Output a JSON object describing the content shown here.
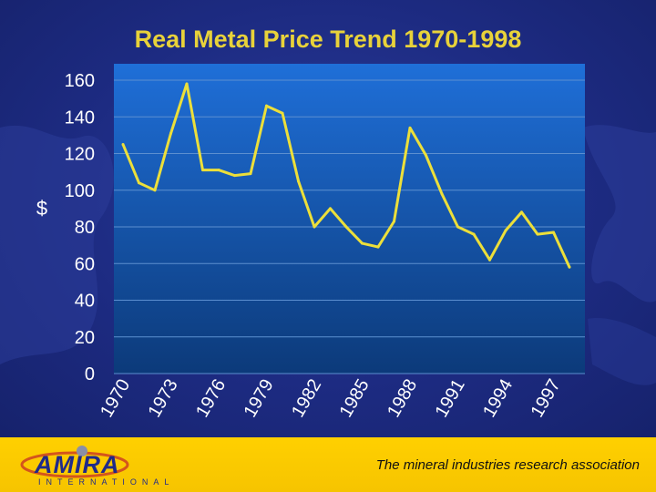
{
  "title": "Real Metal Price Trend 1970-1998",
  "footer": {
    "logo_text": "AMIRA",
    "logo_subtext": "INTERNATIONAL",
    "tagline": "The mineral industries research association"
  },
  "colors": {
    "background": "#1d2b82",
    "title": "#e8d23a",
    "plot_top": "#1f6fd8",
    "plot_bottom": "#0c3a7a",
    "line": "#ecdf3a",
    "footer": "#ffd000"
  },
  "chart_data": {
    "type": "line",
    "title": "Real Metal Price Trend 1970-1998",
    "xlabel": "",
    "ylabel": "$",
    "ylim": [
      0,
      160
    ],
    "yticks": [
      0,
      20,
      40,
      60,
      80,
      100,
      120,
      140,
      160
    ],
    "xticks": [
      "1970",
      "1973",
      "1976",
      "1979",
      "1982",
      "1985",
      "1988",
      "1991",
      "1994",
      "1997"
    ],
    "grid": true,
    "legend": "none",
    "x": [
      1970,
      1971,
      1972,
      1973,
      1974,
      1975,
      1976,
      1977,
      1978,
      1979,
      1980,
      1981,
      1982,
      1983,
      1984,
      1985,
      1986,
      1987,
      1988,
      1989,
      1990,
      1991,
      1992,
      1993,
      1994,
      1995,
      1996,
      1997,
      1998
    ],
    "series": [
      {
        "values": [
          125,
          104,
          100,
          131,
          158,
          111,
          111,
          108,
          109,
          146,
          142,
          105,
          80,
          90,
          80,
          71,
          69,
          83,
          134,
          119,
          98,
          80,
          76,
          62,
          78,
          88,
          76,
          77,
          58
        ]
      }
    ]
  }
}
